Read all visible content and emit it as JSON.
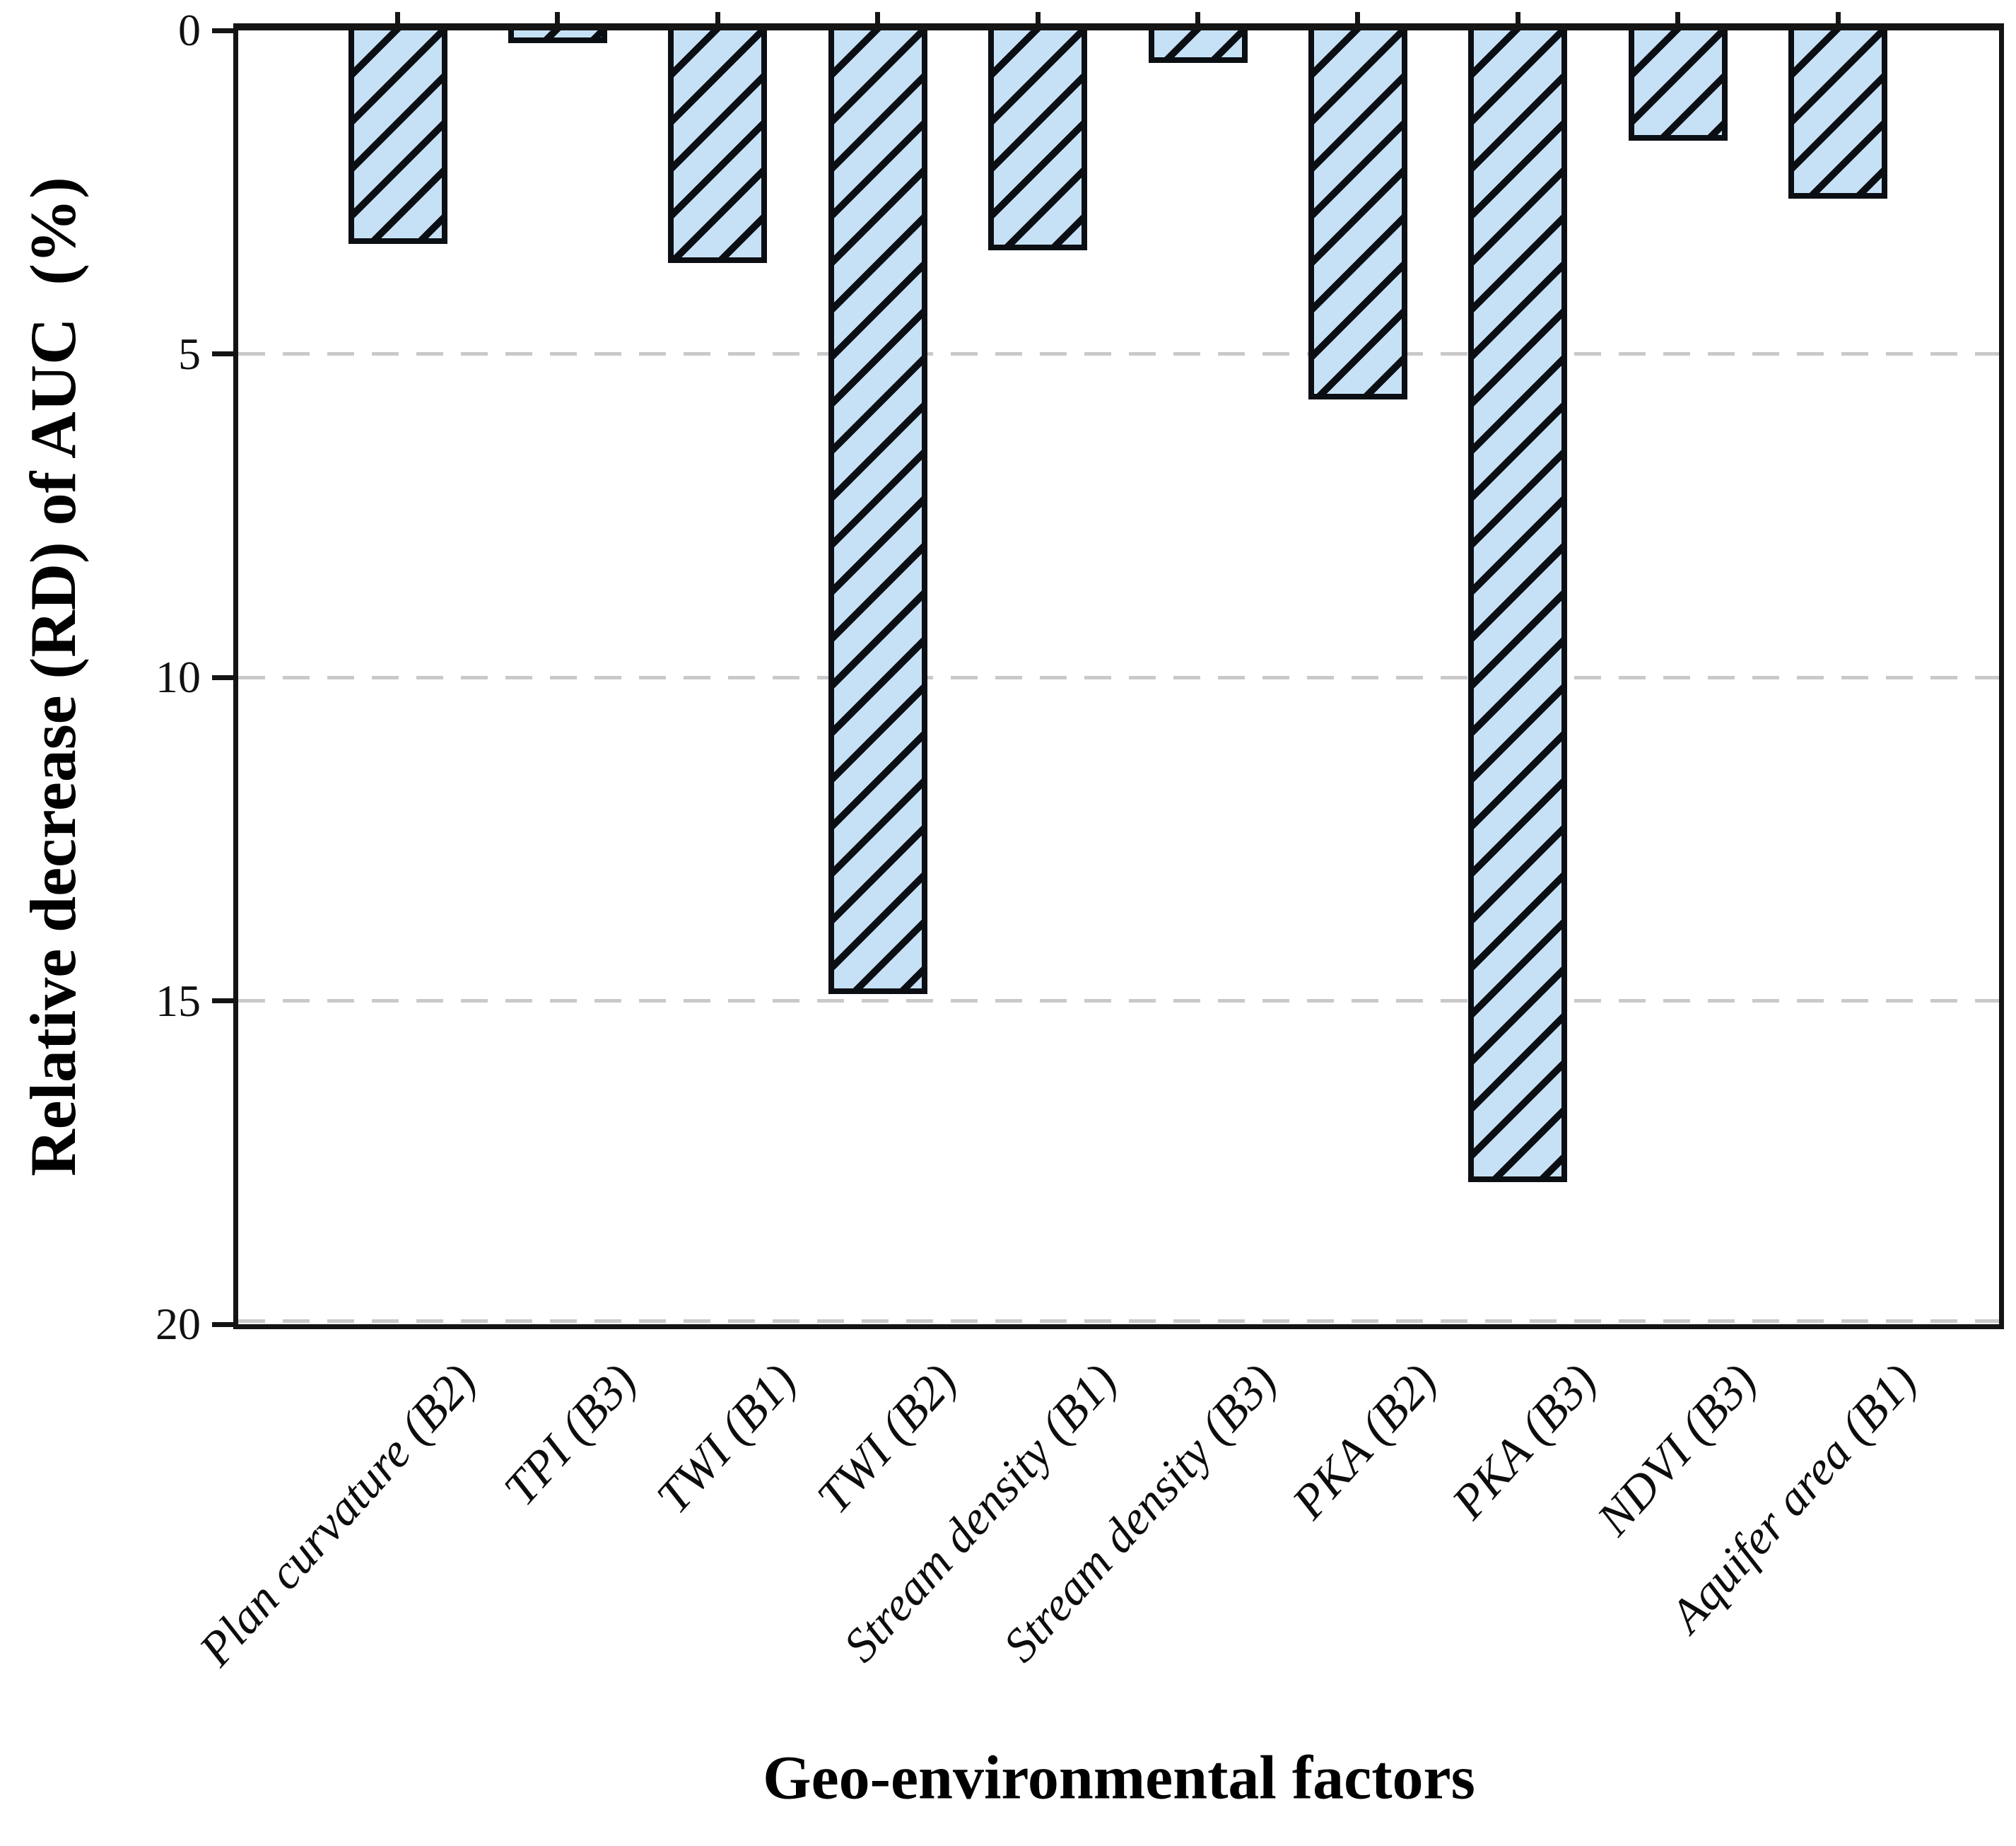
{
  "figure": {
    "background": "#ffffff",
    "bar_fill": "#c6e1f6",
    "bar_edge": "#0b0e13",
    "axis_color": "#141414",
    "grid_color": "#c9c9c9",
    "hatch_pattern": "/"
  },
  "chart_data": {
    "type": "bar",
    "title": "",
    "xlabel": "Geo-environmental factors",
    "ylabel": "Relative decrease (RD) of AUC  (%)",
    "categories": [
      "Plan curvature (B2)",
      "TPI (B3)",
      "TWI (B1)",
      "TWI (B2)",
      "Stream density (B1)",
      "Stream density (B3)",
      "PKA (B2)",
      "PKA (B3)",
      "NDVI (B3)",
      "Aquifer area (B1)"
    ],
    "values": [
      3.3,
      0.2,
      3.6,
      14.9,
      3.4,
      0.5,
      5.7,
      17.8,
      1.7,
      2.6
    ],
    "y_ticks": [
      "0",
      "5",
      "10",
      "15",
      "20"
    ],
    "y_tick_values": [
      0,
      5,
      10,
      15,
      20
    ],
    "y_gridline_values": [
      5,
      10,
      15,
      20
    ],
    "ylim": [
      0,
      20
    ],
    "y_axis_inverted": true,
    "grid": "horizontal dashed",
    "legend_position": "none",
    "bar_hatch": "/"
  }
}
